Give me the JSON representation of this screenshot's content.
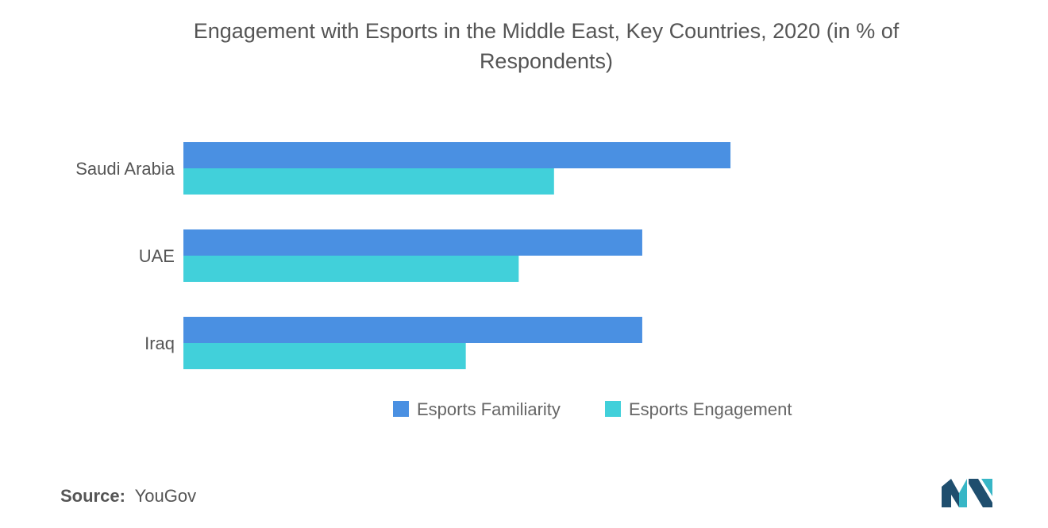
{
  "chart_data": {
    "type": "bar",
    "orientation": "horizontal",
    "title_lines": [
      "Engagement with Esports in the Middle East, Key Countries, 2020 (in % of",
      "Respondents)"
    ],
    "categories": [
      "Saudi Arabia",
      "UAE",
      "Iraq"
    ],
    "series": [
      {
        "name": "Esports Familiarity",
        "values": [
          62,
          52,
          52
        ],
        "color": "#4a90e2"
      },
      {
        "name": "Esports Engagement",
        "values": [
          42,
          38,
          32
        ],
        "color": "#41d0da"
      }
    ],
    "xlim": [
      0,
      70
    ],
    "grid": false,
    "legend_position": "bottom"
  },
  "source": {
    "label": "Source:",
    "value": "YouGov"
  },
  "colors": {
    "text": "#555555",
    "logo_dark": "#1f4e6e",
    "logo_teal": "#37b6c6"
  }
}
